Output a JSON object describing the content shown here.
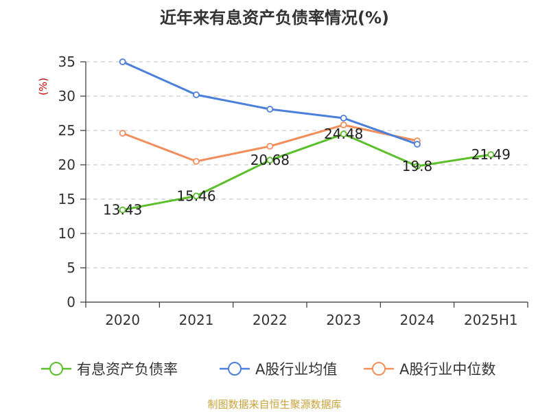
{
  "chart_data": {
    "type": "line",
    "title": "近年来有息资产负债率情况(%)",
    "ylabel": "(%)",
    "xlabel": "",
    "categories": [
      "2020",
      "2021",
      "2022",
      "2023",
      "2024",
      "2025H1"
    ],
    "ylim": [
      0,
      35
    ],
    "yticks": [
      0,
      5,
      10,
      15,
      20,
      25,
      30,
      35
    ],
    "grid": true,
    "legend_position": "bottom",
    "series": [
      {
        "name": "有息资产负债率",
        "color": "#5bbf2a",
        "values": [
          13.43,
          15.46,
          20.68,
          24.48,
          19.8,
          21.49
        ],
        "labels": [
          "13.43",
          "15.46",
          "20.68",
          "24.48",
          "19.8",
          "21.49"
        ]
      },
      {
        "name": "A股行业均值",
        "color": "#4a7fdb",
        "values": [
          35.0,
          30.2,
          28.1,
          26.8,
          23.0,
          null
        ]
      },
      {
        "name": "A股行业中位数",
        "color": "#f28e5b",
        "values": [
          24.6,
          20.5,
          22.7,
          25.8,
          23.5,
          null
        ]
      }
    ]
  },
  "source": "制图数据来自恒生聚源数据库"
}
